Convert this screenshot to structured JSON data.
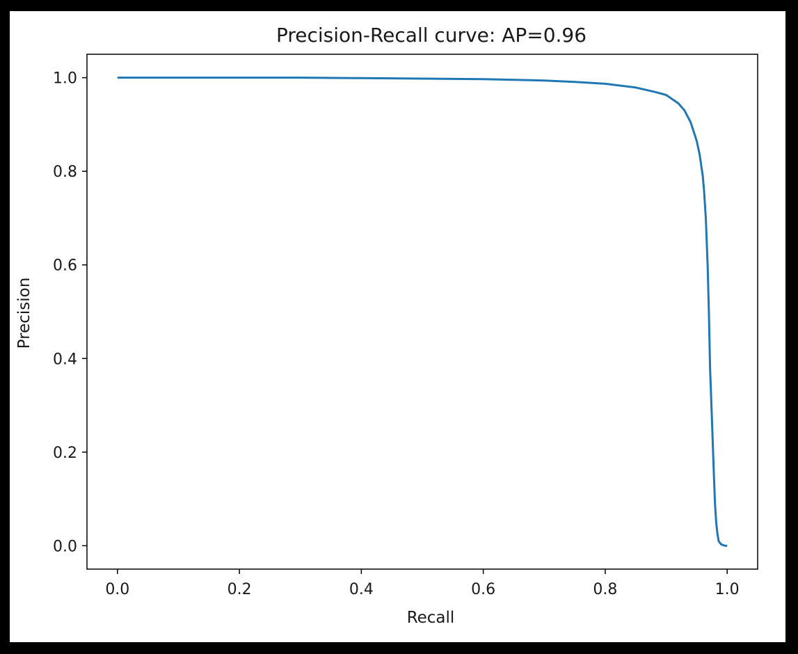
{
  "chart_data": {
    "type": "line",
    "title": "Precision-Recall curve: AP=0.96",
    "xlabel": "Recall",
    "ylabel": "Precision",
    "xlim": [
      -0.05,
      1.05
    ],
    "ylim": [
      -0.05,
      1.05
    ],
    "xticks": [
      0.0,
      0.2,
      0.4,
      0.6,
      0.8,
      1.0
    ],
    "xtick_labels": [
      "0.0",
      "0.2",
      "0.4",
      "0.6",
      "0.8",
      "1.0"
    ],
    "yticks": [
      0.0,
      0.2,
      0.4,
      0.6,
      0.8,
      1.0
    ],
    "ytick_labels": [
      "0.0",
      "0.2",
      "0.4",
      "0.6",
      "0.8",
      "1.0"
    ],
    "grid": false,
    "line_color": "#1f77b4",
    "series": [
      {
        "x": [
          0.0,
          0.1,
          0.2,
          0.3,
          0.4,
          0.5,
          0.6,
          0.7,
          0.75,
          0.8,
          0.85,
          0.88,
          0.9,
          0.92,
          0.93,
          0.94,
          0.95,
          0.955,
          0.96,
          0.962,
          0.965,
          0.968,
          0.97,
          0.972,
          0.975,
          0.978,
          0.98,
          0.982,
          0.984,
          0.986,
          0.99,
          0.994,
          0.997,
          1.0
        ],
        "y": [
          1.0,
          1.0,
          1.0,
          1.0,
          0.999,
          0.998,
          0.997,
          0.994,
          0.991,
          0.987,
          0.979,
          0.97,
          0.963,
          0.945,
          0.93,
          0.905,
          0.865,
          0.835,
          0.79,
          0.76,
          0.7,
          0.6,
          0.5,
          0.38,
          0.27,
          0.16,
          0.09,
          0.05,
          0.025,
          0.01,
          0.003,
          0.001,
          0.0,
          0.0
        ]
      }
    ]
  }
}
